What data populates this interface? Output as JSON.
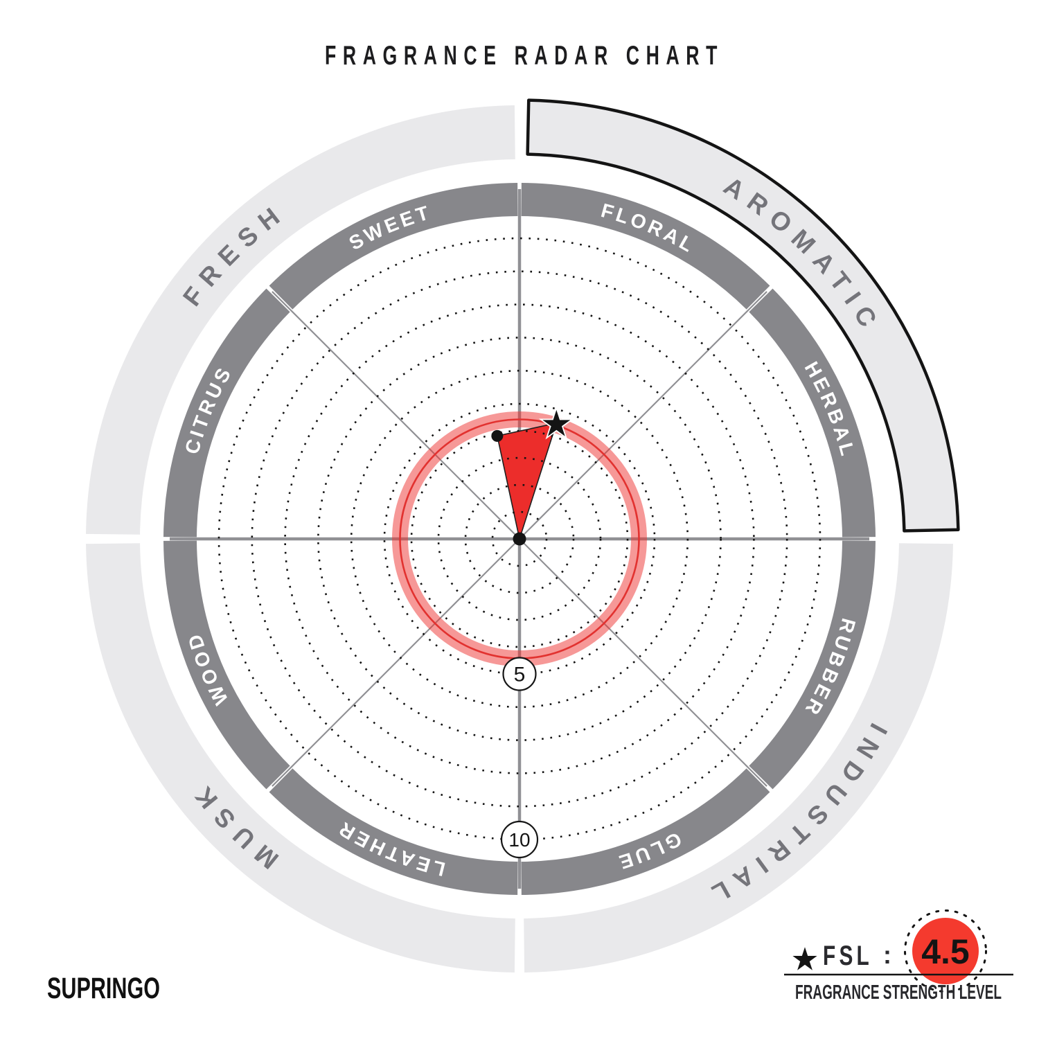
{
  "title": "FRAGRANCE RADAR CHART",
  "brand": "SUPRINGO",
  "legend": {
    "star_icon": "★",
    "fsl_label": "FSL",
    "separator": ":",
    "fsl_value": "4.5",
    "caption": "FRAGRANCE STRENGTH LEVEL"
  },
  "colors": {
    "accent_red": "#f43a2e",
    "wedge_red": "#ec2d2b",
    "ring_red": "#e23230",
    "ring_red_halo": "rgba(238,49,47,0.5)",
    "dark_band": "#87878b",
    "light_band": "#e9e9eb",
    "band_label": "#ffffff",
    "outer_label": "#74747a",
    "axis_gray": "#909094",
    "ink": "#141414"
  },
  "chart_data": {
    "type": "radar",
    "title": "FRAGRANCE RADAR CHART",
    "grid": "dotted concentric rings",
    "scale": {
      "min": 0,
      "max": 10,
      "ring_step": 1,
      "labeled_ticks": [
        5,
        10
      ]
    },
    "categories": [
      {
        "label": "FLORAL",
        "group": "AROMATIC",
        "value": 4.5,
        "marker": "star",
        "plot_angle_deg": 17.7
      },
      {
        "label": "HERBAL",
        "group": "AROMATIC",
        "value": 0
      },
      {
        "label": "RUBBER",
        "group": "INDUSTRIAL",
        "value": 0
      },
      {
        "label": "GLUE",
        "group": "INDUSTRIAL",
        "value": 0
      },
      {
        "label": "LEATHER",
        "group": "MUSK",
        "value": 0
      },
      {
        "label": "WOOD",
        "group": "MUSK",
        "value": 0
      },
      {
        "label": "CITRUS",
        "group": "FRESH",
        "value": 0
      },
      {
        "label": "SWEET",
        "group": "FRESH",
        "value": 3.9,
        "marker": "dot",
        "plot_angle_deg": -12.2
      }
    ],
    "groups": [
      {
        "label": "AROMATIC",
        "highlighted": true
      },
      {
        "label": "INDUSTRIAL",
        "highlighted": false
      },
      {
        "label": "MUSK",
        "highlighted": false
      },
      {
        "label": "FRESH",
        "highlighted": false
      }
    ],
    "fsl": {
      "value": 4.5,
      "shown_as": "red ring and star marker"
    },
    "legend_position": "bottom-right"
  }
}
